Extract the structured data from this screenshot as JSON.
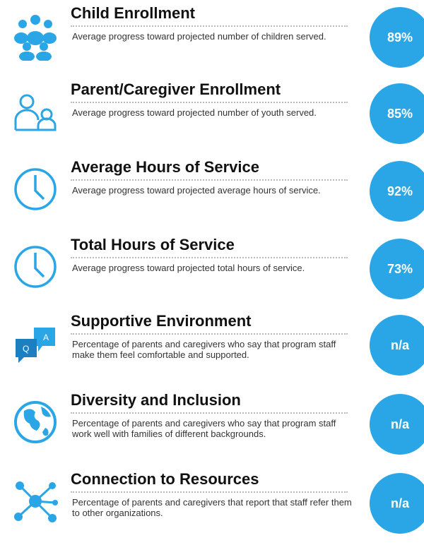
{
  "items": [
    {
      "title": "Child Enrollment",
      "description": "Average progress toward projected number of children served.",
      "value": "89%"
    },
    {
      "title": "Parent/Caregiver Enrollment",
      "description": "Average progress toward projected number of youth served.",
      "value": "85%"
    },
    {
      "title": "Average Hours of Service",
      "description": "Average progress toward projected average hours of service.",
      "value": "92%"
    },
    {
      "title": "Total Hours of Service",
      "description": "Average progress toward projected total hours of service.",
      "value": "73%"
    },
    {
      "title": "Supportive Environment",
      "description": "Percentage of parents and caregivers who say that program staff make them feel comfortable and supported.",
      "value": "n/a"
    },
    {
      "title": "Diversity and Inclusion",
      "description": "Percentage of parents and caregivers who say that program staff work well with families of different backgrounds.",
      "value": "n/a"
    },
    {
      "title": "Connection to Resources",
      "description": "Percentage of parents and caregivers that report that staff refer them to other organizations.",
      "value": "n/a"
    }
  ]
}
